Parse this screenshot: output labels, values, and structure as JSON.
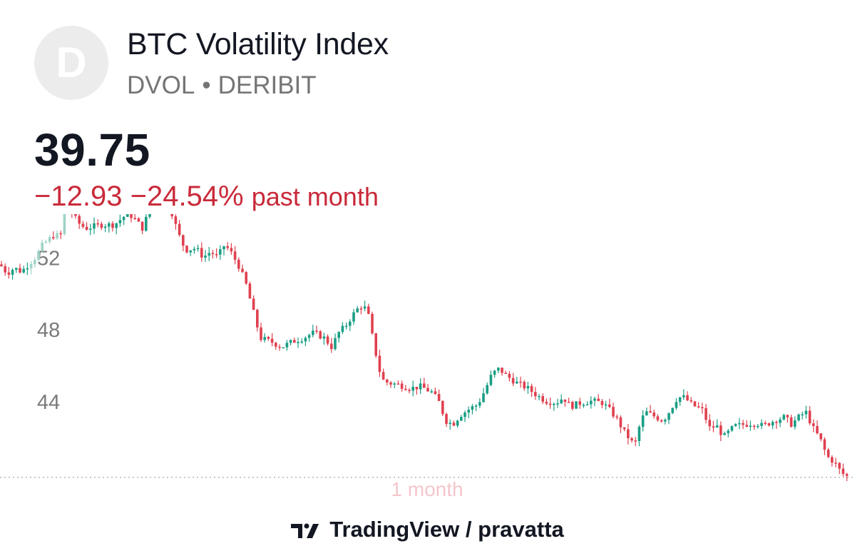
{
  "header": {
    "logo_letter": "D",
    "title": "BTC Volatility Index",
    "ticker": "DVOL",
    "separator": "•",
    "exchange": "DERIBIT"
  },
  "quote": {
    "price": "39.75",
    "change_abs": "−12.93",
    "change_pct": "−24.54%",
    "period_label": "past month"
  },
  "colors": {
    "up": "#1a9e85",
    "down": "#e0404f",
    "text": "#131722",
    "muted": "#757575"
  },
  "footer": {
    "brand": "TradingView",
    "separator": "/",
    "author": "pravatta"
  },
  "chart_data": {
    "type": "candlestick",
    "title": "",
    "x_label": "1 month",
    "ylim": [
      40.1,
      53.8
    ],
    "yticks": [
      44,
      48,
      52
    ],
    "last_value": 39.75,
    "grid": false,
    "anchors": [
      [
        0,
        51.6
      ],
      [
        10,
        51.1
      ],
      [
        20,
        51.4
      ],
      [
        30,
        51.2
      ],
      [
        40,
        51.6
      ],
      [
        50,
        52.0
      ],
      [
        60,
        52.7
      ],
      [
        75,
        53.2
      ],
      [
        85,
        53.2
      ],
      [
        95,
        55.4
      ],
      [
        100,
        54.5
      ],
      [
        110,
        53.9
      ],
      [
        120,
        53.6
      ],
      [
        140,
        53.8
      ],
      [
        160,
        53.8
      ],
      [
        175,
        54.3
      ],
      [
        185,
        54.3
      ],
      [
        200,
        53.6
      ],
      [
        210,
        54.7
      ],
      [
        220,
        55.3
      ],
      [
        230,
        55.1
      ],
      [
        240,
        54.6
      ],
      [
        250,
        53.3
      ],
      [
        260,
        52.4
      ],
      [
        275,
        52.5
      ],
      [
        285,
        52.0
      ],
      [
        295,
        52.3
      ],
      [
        305,
        52.0
      ],
      [
        315,
        52.7
      ],
      [
        325,
        52.2
      ],
      [
        335,
        51.5
      ],
      [
        345,
        50.5
      ],
      [
        355,
        49.0
      ],
      [
        365,
        47.5
      ],
      [
        380,
        47.3
      ],
      [
        395,
        47.0
      ],
      [
        410,
        47.3
      ],
      [
        425,
        47.5
      ],
      [
        440,
        47.8
      ],
      [
        455,
        47.5
      ],
      [
        465,
        47.0
      ],
      [
        475,
        47.8
      ],
      [
        485,
        48.2
      ],
      [
        495,
        48.8
      ],
      [
        505,
        49.3
      ],
      [
        515,
        49.1
      ],
      [
        525,
        47.0
      ],
      [
        535,
        45.2
      ],
      [
        545,
        45.0
      ],
      [
        560,
        44.9
      ],
      [
        575,
        44.7
      ],
      [
        590,
        44.8
      ],
      [
        605,
        44.5
      ],
      [
        615,
        44.0
      ],
      [
        625,
        42.9
      ],
      [
        635,
        42.7
      ],
      [
        645,
        43.2
      ],
      [
        660,
        43.6
      ],
      [
        670,
        43.8
      ],
      [
        680,
        44.6
      ],
      [
        690,
        45.5
      ],
      [
        700,
        45.8
      ],
      [
        710,
        45.4
      ],
      [
        725,
        45.0
      ],
      [
        740,
        44.7
      ],
      [
        750,
        44.4
      ],
      [
        765,
        44.0
      ],
      [
        780,
        43.9
      ],
      [
        790,
        44.2
      ],
      [
        800,
        43.7
      ],
      [
        815,
        43.9
      ],
      [
        830,
        44.0
      ],
      [
        845,
        43.9
      ],
      [
        855,
        43.5
      ],
      [
        865,
        43.0
      ],
      [
        875,
        42.3
      ],
      [
        890,
        41.5
      ],
      [
        898,
        42.8
      ],
      [
        905,
        43.4
      ],
      [
        915,
        43.2
      ],
      [
        930,
        42.9
      ],
      [
        940,
        43.5
      ],
      [
        950,
        44.2
      ],
      [
        960,
        44.2
      ],
      [
        970,
        43.8
      ],
      [
        985,
        43.5
      ],
      [
        995,
        42.5
      ],
      [
        1005,
        42.6
      ],
      [
        1015,
        42.0
      ],
      [
        1030,
        42.6
      ],
      [
        1045,
        42.7
      ],
      [
        1060,
        42.8
      ],
      [
        1070,
        42.6
      ],
      [
        1085,
        42.9
      ],
      [
        1100,
        43.1
      ],
      [
        1110,
        42.7
      ],
      [
        1120,
        43.1
      ],
      [
        1130,
        43.4
      ],
      [
        1140,
        42.5
      ],
      [
        1150,
        41.9
      ],
      [
        1160,
        40.9
      ],
      [
        1170,
        40.6
      ],
      [
        1180,
        40.0
      ],
      [
        1190,
        39.75
      ]
    ]
  }
}
